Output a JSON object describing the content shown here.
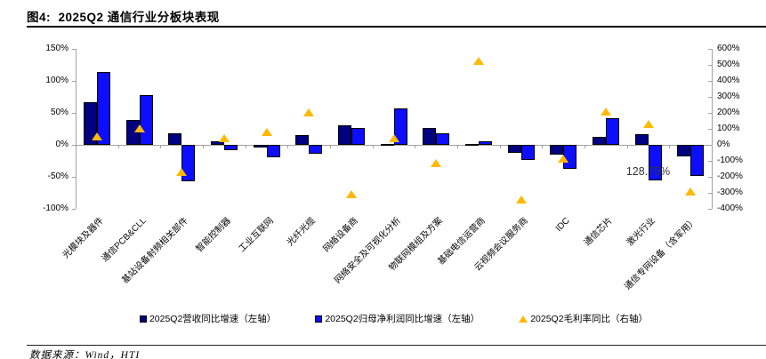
{
  "figure": {
    "title": "图4:  2025Q2 通信行业分板块表现",
    "source": "数据来源：Wind，HTI"
  },
  "chart_data": {
    "type": "bar",
    "title": "2025Q2 通信行业分板块表现",
    "categories": [
      "光模块及器件",
      "通信PCB&CLL",
      "基站设备射频相关部件",
      "智能控制器",
      "工业互联网",
      "光纤光缆",
      "网络设备商",
      "网络安全及可视化分析",
      "物联网模组及方案",
      "基础电信运营商",
      "云视频会议服务商",
      "IDC",
      "通信芯片",
      "激光行业",
      "通信专网设备（含军用）"
    ],
    "series": [
      {
        "name": "2025Q2营收同比增速（左轴）",
        "axis": "left",
        "marker": "square",
        "color": "#000080",
        "values": [
          66,
          39,
          18,
          6,
          -4,
          15,
          30,
          2,
          27,
          1,
          -12,
          -15,
          12,
          16,
          -18
        ]
      },
      {
        "name": "2025Q2归母净利润同比增速（左轴）",
        "axis": "left",
        "marker": "square",
        "color": "#0d0dff",
        "values": [
          114,
          78,
          -57,
          -8,
          -20,
          -14,
          27,
          57,
          18,
          5,
          -24,
          -37,
          42,
          -55,
          -48
        ]
      },
      {
        "name": "2025Q2毛利率同比（右轴）",
        "axis": "right",
        "marker": "triangle",
        "color": "#ffb900",
        "values": [
          50,
          100,
          -170,
          40,
          80,
          200,
          -310,
          40,
          -115,
          520,
          -345,
          -90,
          205,
          128.75,
          -295
        ]
      }
    ],
    "left_axis": {
      "min": -100,
      "max": 150,
      "step": 50,
      "tick_suffix": "%",
      "ticks": [
        "150%",
        "100%",
        "50%",
        "0%",
        "-50%",
        "-100%"
      ]
    },
    "right_axis": {
      "min": -400,
      "max": 600,
      "step": 100,
      "tick_suffix": "%",
      "ticks": [
        "600%",
        "500%",
        "400%",
        "300%",
        "200%",
        "100%",
        "0%",
        "-100%",
        "-200%",
        "-300%",
        "-400%"
      ]
    },
    "grid": false,
    "legend_position": "bottom",
    "annotations": [
      {
        "text": "128.75%",
        "category_index": 13,
        "series": "2025Q2毛利率同比（右轴）"
      }
    ]
  },
  "colors": {
    "revenue_bar": "#000080",
    "net_profit_bar": "#0d0dff",
    "margin_triangle": "#ffb900",
    "axis_gray": "#a3a3a3"
  }
}
